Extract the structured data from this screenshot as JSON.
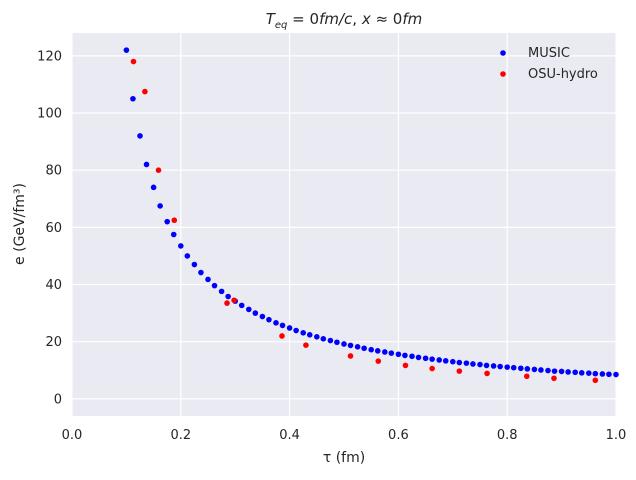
{
  "chart_data": {
    "type": "scatter",
    "title": "T_eq = 0 fm/c, x ≈ 0 fm",
    "title_parts": {
      "t": "T",
      "t_sub": "eq",
      "eq": " = 0",
      "unit1": "fm/c",
      "sep": ", ",
      "x": "x",
      "approx": " ≈ 0",
      "unit2": "fm"
    },
    "xlabel": "τ (fm)",
    "ylabel": "e (GeV/fm³)",
    "xlim": [
      0.0,
      1.0
    ],
    "ylim": [
      -6,
      128
    ],
    "x_ticks": [
      0.0,
      0.2,
      0.4,
      0.6,
      0.8,
      1.0
    ],
    "x_tick_labels": [
      "0.0",
      "0.2",
      "0.4",
      "0.6",
      "0.8",
      "1.0"
    ],
    "y_ticks": [
      0,
      20,
      40,
      60,
      80,
      100,
      120
    ],
    "y_tick_labels": [
      "0",
      "20",
      "40",
      "60",
      "80",
      "100",
      "120"
    ],
    "grid": true,
    "legend_position": "top-right",
    "background": "#eaeaf2",
    "series": [
      {
        "name": "MUSIC",
        "color": "#0000ff",
        "points": [
          [
            0.1,
            122.0
          ],
          [
            0.112,
            105.0
          ],
          [
            0.125,
            92.0
          ],
          [
            0.137,
            82.0
          ],
          [
            0.15,
            74.0
          ],
          [
            0.162,
            67.5
          ],
          [
            0.175,
            62.0
          ],
          [
            0.187,
            57.5
          ],
          [
            0.2,
            53.5
          ],
          [
            0.212,
            50.0
          ],
          [
            0.225,
            47.0
          ],
          [
            0.237,
            44.2
          ],
          [
            0.25,
            41.8
          ],
          [
            0.262,
            39.6
          ],
          [
            0.275,
            37.6
          ],
          [
            0.287,
            35.8
          ],
          [
            0.3,
            34.2
          ],
          [
            0.312,
            32.7
          ],
          [
            0.325,
            31.3
          ],
          [
            0.337,
            30.0
          ],
          [
            0.35,
            28.8
          ],
          [
            0.362,
            27.7
          ],
          [
            0.375,
            26.6
          ],
          [
            0.387,
            25.7
          ],
          [
            0.4,
            24.8
          ],
          [
            0.412,
            23.9
          ],
          [
            0.425,
            23.1
          ],
          [
            0.437,
            22.4
          ],
          [
            0.45,
            21.7
          ],
          [
            0.462,
            21.0
          ],
          [
            0.475,
            20.4
          ],
          [
            0.487,
            19.8
          ],
          [
            0.5,
            19.2
          ],
          [
            0.512,
            18.7
          ],
          [
            0.525,
            18.2
          ],
          [
            0.537,
            17.7
          ],
          [
            0.55,
            17.2
          ],
          [
            0.562,
            16.8
          ],
          [
            0.575,
            16.4
          ],
          [
            0.587,
            16.0
          ],
          [
            0.6,
            15.6
          ],
          [
            0.612,
            15.2
          ],
          [
            0.625,
            14.9
          ],
          [
            0.637,
            14.5
          ],
          [
            0.65,
            14.2
          ],
          [
            0.662,
            13.9
          ],
          [
            0.675,
            13.6
          ],
          [
            0.687,
            13.3
          ],
          [
            0.7,
            13.0
          ],
          [
            0.712,
            12.7
          ],
          [
            0.725,
            12.5
          ],
          [
            0.737,
            12.2
          ],
          [
            0.75,
            12.0
          ],
          [
            0.762,
            11.7
          ],
          [
            0.775,
            11.5
          ],
          [
            0.787,
            11.3
          ],
          [
            0.8,
            11.1
          ],
          [
            0.812,
            10.9
          ],
          [
            0.825,
            10.7
          ],
          [
            0.837,
            10.5
          ],
          [
            0.85,
            10.3
          ],
          [
            0.862,
            10.1
          ],
          [
            0.875,
            9.9
          ],
          [
            0.887,
            9.7
          ],
          [
            0.9,
            9.6
          ],
          [
            0.912,
            9.4
          ],
          [
            0.925,
            9.3
          ],
          [
            0.937,
            9.1
          ],
          [
            0.95,
            9.0
          ],
          [
            0.962,
            8.8
          ],
          [
            0.975,
            8.7
          ],
          [
            0.987,
            8.6
          ],
          [
            1.0,
            8.5
          ]
        ]
      },
      {
        "name": "OSU-hydro",
        "color": "#ff0000",
        "points": [
          [
            0.113,
            118.0
          ],
          [
            0.134,
            107.5
          ],
          [
            0.159,
            80.0
          ],
          [
            0.188,
            62.5
          ],
          [
            0.285,
            33.5
          ],
          [
            0.298,
            34.5
          ],
          [
            0.386,
            22.0
          ],
          [
            0.43,
            18.8
          ],
          [
            0.512,
            15.0
          ],
          [
            0.563,
            13.2
          ],
          [
            0.613,
            11.7
          ],
          [
            0.662,
            10.6
          ],
          [
            0.712,
            9.7
          ],
          [
            0.763,
            8.9
          ],
          [
            0.836,
            7.9
          ],
          [
            0.886,
            7.2
          ],
          [
            0.962,
            6.5
          ]
        ]
      }
    ]
  }
}
